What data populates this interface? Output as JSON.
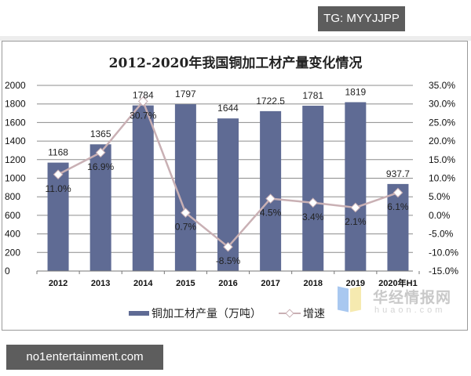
{
  "badges": {
    "top_right": "TG: MYYJJPP",
    "bottom_left": "no1entertainment.com"
  },
  "watermark": {
    "cn": "华经情报网",
    "en": "huaon.com"
  },
  "colors": {
    "bar": "#5f6b94",
    "line": "#c9b0b4",
    "marker_fill": "#ffffff",
    "grid": "#8c8c8c"
  },
  "chart_data": {
    "type": "bar+line",
    "title": "2012-2020年我国铜加工材产量变化情况",
    "categories": [
      "2012",
      "2013",
      "2014",
      "2015",
      "2016",
      "2017",
      "2018",
      "2019",
      "2020年H1"
    ],
    "series": [
      {
        "name": "铜加工材产量（万吨）",
        "type": "bar",
        "axis": "left",
        "values": [
          1168,
          1365,
          1784,
          1797,
          1644,
          1722.5,
          1781,
          1819,
          937.7
        ],
        "labels": [
          "1168",
          "1365",
          "1784",
          "1797",
          "1644",
          "1722.5",
          "1781",
          "1819",
          "937.7"
        ]
      },
      {
        "name": "增速",
        "type": "line",
        "axis": "right",
        "values": [
          11.0,
          16.9,
          30.7,
          0.7,
          -8.5,
          4.5,
          3.4,
          2.1,
          6.1
        ],
        "labels": [
          "11.0%",
          "16.9%",
          "30.7%",
          "0.7%",
          "-8.5%",
          "4.5%",
          "3.4%",
          "2.1%",
          "6.1%"
        ]
      }
    ],
    "left_axis": {
      "ylim": [
        0,
        2000
      ],
      "ticks": [
        "0",
        "200",
        "400",
        "600",
        "800",
        "1000",
        "1200",
        "1400",
        "1600",
        "1800",
        "2000"
      ]
    },
    "right_axis": {
      "ylim": [
        -15,
        35
      ],
      "ticks": [
        "-15.0%",
        "-10.0%",
        "-5.0%",
        "0.0%",
        "5.0%",
        "10.0%",
        "15.0%",
        "20.0%",
        "25.0%",
        "30.0%",
        "35.0%"
      ]
    },
    "grid": true,
    "legend_position": "bottom",
    "legend": [
      "铜加工材产量（万吨）",
      "增速"
    ]
  }
}
